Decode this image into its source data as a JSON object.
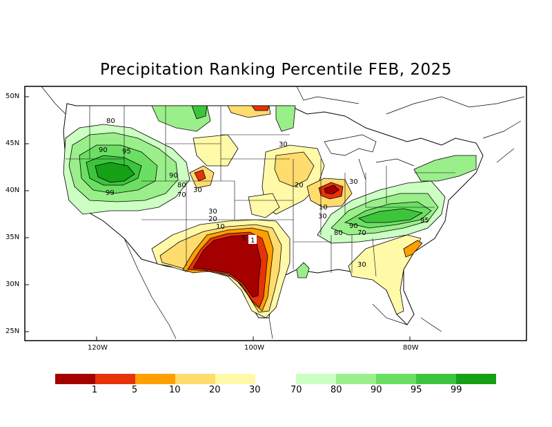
{
  "title": "Precipitation Ranking Percentile FEB, 2025",
  "lat_labels": [
    "50N",
    "45N",
    "40N",
    "35N",
    "30N",
    "25N"
  ],
  "lon_labels": [
    "120W",
    "100W",
    "80W"
  ],
  "contour_labels": [
    "80",
    "90",
    "95",
    "99",
    "90",
    "80",
    "70",
    "30",
    "30",
    "20",
    "30",
    "30",
    "10",
    "30",
    "20",
    "10",
    "5",
    "1",
    "90",
    "95",
    "80",
    "70",
    "30"
  ],
  "legend": {
    "dry_colors": [
      "#a50000",
      "#e8320a",
      "#ff9f00",
      "#ffdc6e",
      "#fff9a8"
    ],
    "wet_colors": [
      "#ccffc2",
      "#9aef8a",
      "#6bdf62",
      "#3dc43d",
      "#15a015"
    ],
    "dry_labels": [
      "1",
      "5",
      "10",
      "20",
      "30"
    ],
    "wet_labels": [
      "70",
      "80",
      "90",
      "95",
      "99"
    ]
  }
}
